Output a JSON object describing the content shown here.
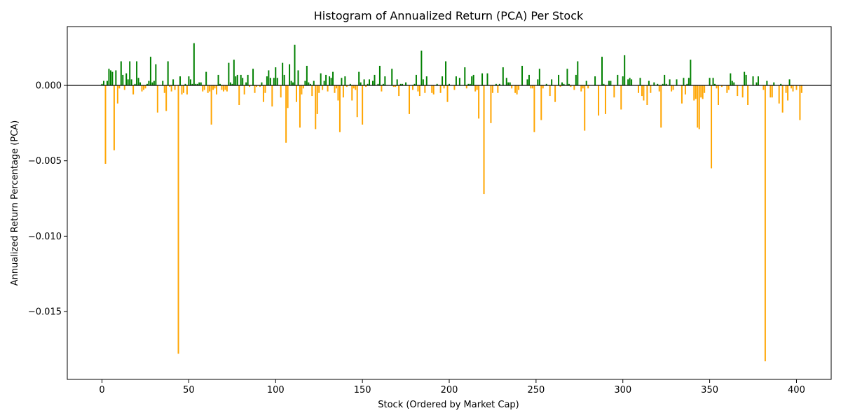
{
  "chart_data": {
    "type": "bar",
    "title": "Histogram of Annualized Return (PCA) Per Stock",
    "xlabel": "Stock (Ordered by Market Cap)",
    "ylabel": "Annualized Return Percentage (PCA)",
    "xlim": [
      -20,
      420
    ],
    "ylim": [
      -0.0195,
      0.0039
    ],
    "xticks": [
      0,
      50,
      100,
      150,
      200,
      250,
      300,
      350,
      400
    ],
    "xtick_labels": [
      "0",
      "50",
      "100",
      "150",
      "200",
      "250",
      "300",
      "350",
      "400"
    ],
    "yticks": [
      0.0,
      -0.005,
      -0.01,
      -0.015
    ],
    "ytick_labels": [
      "0.000",
      "−0.005",
      "−0.010",
      "−0.015"
    ],
    "colors": {
      "positive": "#008000",
      "negative": "#ffa500",
      "zero_line": "#000000"
    },
    "legend": "none",
    "grid": false,
    "series": [
      {
        "values": [
          0.0001,
          0.0003,
          -0.0052,
          0.0003,
          0.0011,
          0.001,
          0.0009,
          -0.0043,
          0.001,
          -0.0012,
          -0.0002,
          0.0016,
          0.0007,
          -0.0003,
          0.0008,
          0.0004,
          0.0016,
          0.0004,
          -0.0006,
          0.0001,
          0.0016,
          0.0005,
          0.0002,
          -0.0004,
          -0.0003,
          -0.0002,
          0.0001,
          0.0003,
          0.0019,
          0.0002,
          0.0003,
          0.0014,
          -0.0018,
          0.0,
          0.0,
          0.0003,
          -0.0005,
          -0.0017,
          0.0016,
          -0.0001,
          -0.0004,
          0.0004,
          -0.0003,
          0.0,
          -0.0178,
          0.0006,
          -0.0006,
          -0.0005,
          0.0001,
          -0.0006,
          0.0006,
          0.0004,
          0.0001,
          0.0028,
          0.0001,
          0.0001,
          0.0002,
          0.0002,
          -0.0004,
          -0.0003,
          0.0009,
          -0.0005,
          -0.0004,
          -0.0026,
          -0.0003,
          -0.0002,
          -0.0006,
          0.0007,
          0.0001,
          -0.0003,
          -0.0004,
          -0.0003,
          -0.0004,
          0.0015,
          0.0002,
          0.0001,
          0.0017,
          0.0006,
          0.0007,
          -0.0013,
          0.0007,
          0.0005,
          -0.0006,
          0.0002,
          0.0007,
          -0.0001,
          0.0,
          0.0011,
          -0.0005,
          -0.0001,
          0.0,
          -0.0001,
          0.0002,
          -0.0011,
          -0.0005,
          0.0006,
          0.001,
          0.0005,
          -0.0014,
          0.0005,
          0.0012,
          0.0005,
          0.0,
          -0.0008,
          0.0015,
          0.0007,
          -0.0038,
          -0.0015,
          0.0014,
          0.0003,
          0.0002,
          0.0027,
          -0.0011,
          0.001,
          -0.0028,
          -0.0006,
          -0.0002,
          0.0003,
          0.0013,
          0.0002,
          0.0001,
          -0.0007,
          0.0003,
          -0.0029,
          -0.0019,
          -0.0005,
          0.0008,
          -0.0003,
          0.0003,
          0.0007,
          -0.0004,
          0.0006,
          0.0005,
          0.0009,
          -0.0005,
          -0.0002,
          -0.001,
          -0.0031,
          0.0005,
          -0.0008,
          0.0006,
          -0.0001,
          0.0,
          0.0001,
          -0.001,
          -0.0002,
          -0.0003,
          -0.0021,
          0.0009,
          0.0002,
          -0.0026,
          0.0004,
          -0.0001,
          0.0001,
          0.0004,
          0.0,
          0.0003,
          0.0007,
          0.0,
          0.0001,
          0.0013,
          -0.0004,
          0.0001,
          0.0006,
          0.0,
          0.0,
          0.0,
          0.0011,
          -0.0001,
          -0.0001,
          0.0004,
          -0.0007,
          0.0001,
          0.0001,
          0.0,
          0.0002,
          0.0,
          -0.0019,
          0.0,
          -0.0003,
          0.0001,
          0.0007,
          -0.0004,
          -0.0007,
          0.0023,
          0.0004,
          -0.0005,
          0.0006,
          0.0,
          0.0,
          -0.0005,
          -0.0006,
          0.0,
          0.0001,
          0.0,
          -0.0005,
          0.0006,
          -0.0002,
          0.0016,
          -0.0011,
          0.0001,
          0.0,
          0.0,
          -0.0003,
          0.0006,
          0.0,
          0.0005,
          0.0,
          0.0,
          0.0012,
          -0.0002,
          0.0001,
          0.0001,
          0.0006,
          0.0007,
          -0.0004,
          -0.0003,
          -0.0022,
          0.0,
          0.0008,
          -0.0072,
          0.0,
          0.0008,
          0.0,
          -0.0025,
          -0.0005,
          0.0,
          0.0001,
          -0.0005,
          0.0001,
          0.0,
          0.0012,
          0.0,
          0.0005,
          0.0002,
          0.0002,
          -0.0002,
          0.0,
          -0.0005,
          -0.0006,
          -0.0003,
          0.0,
          0.0013,
          0.0,
          0.0,
          0.0004,
          0.0007,
          -0.0002,
          -0.0002,
          -0.0031,
          0.0,
          0.0004,
          0.0011,
          -0.0023,
          -0.0002,
          0.0,
          0.0001,
          0.0,
          -0.0007,
          0.0004,
          0.0,
          -0.0011,
          0.0,
          0.0007,
          -0.0001,
          0.0002,
          0.0001,
          0.0,
          0.0011,
          0.0001,
          -0.0001,
          0.0,
          -0.0003,
          0.0007,
          0.0016,
          0.0,
          -0.0004,
          -0.0002,
          -0.003,
          0.0003,
          -0.0002,
          0.0,
          0.0,
          0.0,
          0.0006,
          0.0,
          -0.002,
          0.0,
          0.0019,
          0.0001,
          -0.0019,
          0.0,
          0.0003,
          0.0003,
          0.0,
          -0.0008,
          0.0,
          0.0007,
          0.0,
          -0.0016,
          0.0006,
          0.002,
          0.0,
          0.0004,
          0.0005,
          0.0004,
          0.0,
          0.0,
          0.0,
          -0.0005,
          0.0005,
          -0.0007,
          -0.001,
          0.0,
          -0.0013,
          0.0003,
          -0.0005,
          0.0,
          0.0002,
          0.0,
          0.0001,
          -0.0004,
          -0.0028,
          0.0001,
          0.0007,
          0.0001,
          0.0,
          0.0004,
          -0.0004,
          -0.0003,
          0.0,
          0.0004,
          0.0,
          0.0,
          -0.0012,
          0.0005,
          -0.0006,
          0.0001,
          0.0005,
          0.0017,
          0.0,
          -0.001,
          -0.0009,
          -0.0028,
          -0.0029,
          -0.0008,
          -0.0009,
          -0.0005,
          0.0,
          0.0,
          0.0005,
          -0.0055,
          0.0005,
          0.0001,
          -0.0002,
          -0.0013,
          0.0,
          -0.0001,
          0.0,
          0.0,
          -0.0005,
          -0.0003,
          0.0008,
          0.0003,
          0.0002,
          0.0,
          -0.0007,
          0.0,
          0.0,
          -0.0008,
          0.0009,
          0.0007,
          -0.0013,
          0.0,
          0.0,
          0.0006,
          0.0,
          0.0002,
          0.0006,
          0.0,
          0.0,
          -0.0003,
          -0.0183,
          0.0003,
          0.0,
          -0.0008,
          -0.0008,
          0.0002,
          0.0,
          0.0,
          -0.0012,
          0.0001,
          -0.0018,
          0.0,
          -0.0005,
          -0.001,
          0.0004,
          -0.0002,
          -0.0004,
          0.0,
          -0.0003,
          0.0,
          -0.0023,
          -0.0005
        ]
      }
    ]
  }
}
